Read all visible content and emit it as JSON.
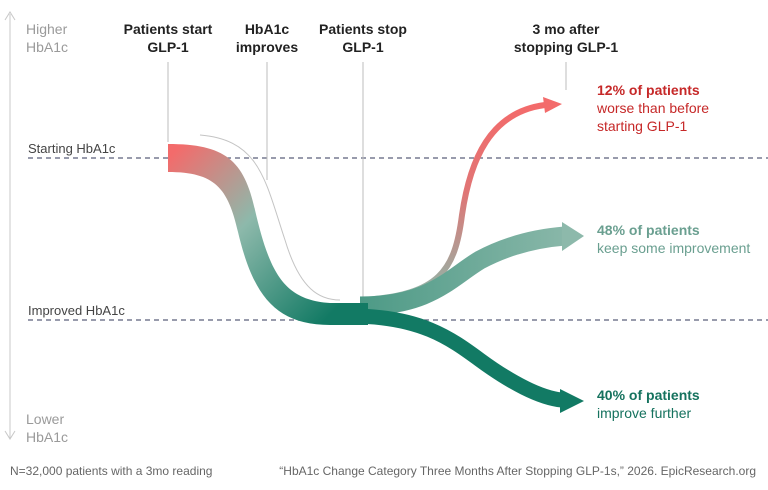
{
  "axis": {
    "higher": [
      "Higher",
      "HbA1c"
    ],
    "lower": [
      "Lower",
      "HbA1c"
    ]
  },
  "reference_lines": {
    "starting": "Starting HbA1c",
    "improved": "Improved HbA1c"
  },
  "stages": [
    [
      "Patients start",
      "GLP-1"
    ],
    [
      "HbA1c",
      "improves"
    ],
    [
      "Patients stop",
      "GLP-1"
    ],
    [
      "3 mo after",
      "stopping GLP-1"
    ]
  ],
  "outcomes": [
    {
      "pct": "12% of patients",
      "desc": [
        "worse than before",
        "starting GLP-1"
      ],
      "color": "#c62828",
      "value": 12
    },
    {
      "pct": "48% of patients",
      "desc": [
        "keep some improvement"
      ],
      "color": "#6a9f90",
      "value": 48
    },
    {
      "pct": "40% of patients",
      "desc": [
        "improve further"
      ],
      "color": "#15725e",
      "value": 40
    }
  ],
  "colors": {
    "red": "#f36b6b",
    "teal_light": "#8db9ab",
    "teal_dark": "#127a64",
    "dashed": "#5b5f7a"
  },
  "footer": {
    "left": "N=32,000 patients with a 3mo reading",
    "right": "“HbA1c Change Category Three Months After Stopping GLP-1s,” 2026. EpicResearch.org"
  }
}
